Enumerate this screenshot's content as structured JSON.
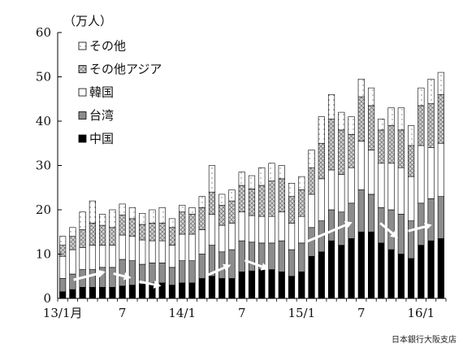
{
  "chart_data": {
    "type": "bar",
    "stacked": true,
    "unit_label": "（万人）",
    "ylim": [
      0,
      60
    ],
    "yticks": [
      0,
      10,
      20,
      30,
      40,
      50,
      60
    ],
    "x_tick_labels": [
      "13/1月",
      "7",
      "14/1",
      "7",
      "15/1",
      "7",
      "16/1"
    ],
    "x_tick_index": [
      0,
      6,
      12,
      18,
      24,
      30,
      36
    ],
    "categories": [
      "2013-01",
      "2013-02",
      "2013-03",
      "2013-04",
      "2013-05",
      "2013-06",
      "2013-07",
      "2013-08",
      "2013-09",
      "2013-10",
      "2013-11",
      "2013-12",
      "2014-01",
      "2014-02",
      "2014-03",
      "2014-04",
      "2014-05",
      "2014-06",
      "2014-07",
      "2014-08",
      "2014-09",
      "2014-10",
      "2014-11",
      "2014-12",
      "2015-01",
      "2015-02",
      "2015-03",
      "2015-04",
      "2015-05",
      "2015-06",
      "2015-07",
      "2015-08",
      "2015-09",
      "2015-10",
      "2015-11",
      "2015-12",
      "2016-01",
      "2016-02",
      "2016-03"
    ],
    "series": [
      {
        "name": "中国",
        "color": "#000000",
        "pattern": "solid",
        "values": [
          1.5,
          2,
          2.5,
          2.5,
          2.5,
          2.5,
          2.8,
          3,
          3.2,
          3.5,
          3.5,
          3,
          3.5,
          3.5,
          4.5,
          5,
          4.5,
          4.5,
          6,
          6.2,
          6.5,
          6.5,
          6,
          5,
          6,
          9.5,
          10.5,
          13,
          12,
          13.5,
          15,
          15,
          12.5,
          11,
          10,
          9,
          12,
          13,
          13.5
        ]
      },
      {
        "name": "台湾",
        "color": "#8c8c8c",
        "pattern": "solid",
        "values": [
          3,
          3.5,
          4,
          4,
          4.5,
          4.5,
          6,
          5.5,
          4.5,
          4.5,
          4.5,
          4,
          5,
          5,
          5.5,
          7,
          6,
          6.5,
          7,
          6.5,
          6,
          6,
          7,
          6,
          6.5,
          6.5,
          7,
          7,
          7.5,
          8,
          9.5,
          8.5,
          8,
          9,
          9,
          8.5,
          9.5,
          9.5,
          9.5
        ]
      },
      {
        "name": "韓国",
        "color": "#ffffff",
        "pattern": "solid",
        "values": [
          5,
          5.5,
          5,
          5.5,
          5,
          5,
          5.5,
          5.5,
          5.5,
          5,
          5,
          5,
          6,
          6,
          5.5,
          7,
          6,
          6,
          6.5,
          6,
          6,
          6,
          6.5,
          6,
          6,
          7.5,
          9.5,
          9,
          8.5,
          8,
          11,
          10,
          10,
          10.5,
          10.5,
          10,
          13,
          11.5,
          12
        ]
      },
      {
        "name": "その他アジア",
        "color": "#c8c8c8",
        "pattern": "cross",
        "values": [
          2.5,
          3,
          4,
          5,
          4.5,
          4,
          4.5,
          4,
          3.5,
          4,
          4,
          4,
          5,
          4.5,
          5,
          5,
          4.5,
          5,
          6,
          6,
          7,
          8,
          7.5,
          6,
          6,
          6,
          8,
          11.5,
          10,
          7.5,
          10,
          10,
          7.5,
          8.5,
          8.5,
          7,
          9,
          10,
          11
        ]
      },
      {
        "name": "その他",
        "color": "#ffffff",
        "pattern": "dots",
        "values": [
          2,
          2,
          4,
          5,
          2.5,
          4,
          2.5,
          2.5,
          2.5,
          3,
          3.5,
          2,
          1.5,
          1.5,
          2.5,
          6,
          2.5,
          2.5,
          3,
          3,
          4,
          4,
          3,
          3,
          3,
          4,
          6,
          5.5,
          4,
          4,
          4,
          4,
          2.5,
          4,
          5,
          4.5,
          4,
          5.5,
          5
        ]
      }
    ],
    "legend": {
      "placement": "top-left",
      "order": [
        "その他",
        "その他アジア",
        "韓国",
        "台湾",
        "中国"
      ]
    }
  },
  "source": "日本銀行大阪支店"
}
